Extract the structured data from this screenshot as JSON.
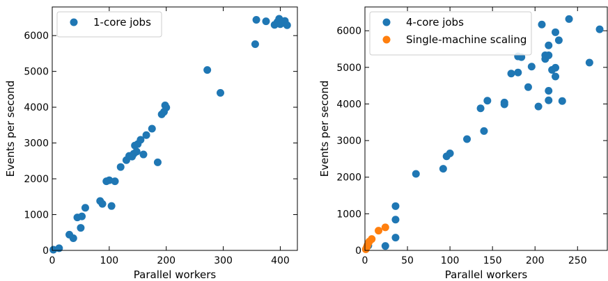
{
  "chart_data": [
    {
      "type": "scatter",
      "xlabel": "Parallel workers",
      "ylabel": "Events per second",
      "xlim": [
        0,
        430
      ],
      "ylim": [
        0,
        6800
      ],
      "xticks": [
        0,
        100,
        200,
        300,
        400
      ],
      "yticks": [
        0,
        1000,
        2000,
        3000,
        4000,
        5000,
        6000
      ],
      "legend_position": "top-left",
      "series": [
        {
          "name": "1-core jobs",
          "color": "#1f77b4",
          "points": [
            [
              2,
              20
            ],
            [
              12,
              60
            ],
            [
              30,
              440
            ],
            [
              37,
              340
            ],
            [
              44,
              920
            ],
            [
              50,
              630
            ],
            [
              52,
              950
            ],
            [
              58,
              1190
            ],
            [
              84,
              1380
            ],
            [
              88,
              1300
            ],
            [
              95,
              1930
            ],
            [
              100,
              1960
            ],
            [
              104,
              1240
            ],
            [
              110,
              1930
            ],
            [
              120,
              2330
            ],
            [
              130,
              2520
            ],
            [
              135,
              2640
            ],
            [
              140,
              2620
            ],
            [
              143,
              2700
            ],
            [
              145,
              2930
            ],
            [
              148,
              2760
            ],
            [
              150,
              2970
            ],
            [
              155,
              3090
            ],
            [
              160,
              2680
            ],
            [
              165,
              3220
            ],
            [
              175,
              3400
            ],
            [
              185,
              2460
            ],
            [
              192,
              3800
            ],
            [
              196,
              3870
            ],
            [
              198,
              4050
            ],
            [
              200,
              3990
            ],
            [
              272,
              5040
            ],
            [
              295,
              4400
            ],
            [
              356,
              5760
            ],
            [
              358,
              6440
            ],
            [
              375,
              6400
            ],
            [
              390,
              6300
            ],
            [
              395,
              6380
            ],
            [
              398,
              6470
            ],
            [
              400,
              6320
            ],
            [
              403,
              6350
            ],
            [
              408,
              6410
            ],
            [
              412,
              6290
            ]
          ]
        }
      ]
    },
    {
      "type": "scatter",
      "xlabel": "Parallel workers",
      "ylabel": "Events per second",
      "xlim": [
        0,
        285
      ],
      "ylim": [
        0,
        6650
      ],
      "xticks": [
        0,
        50,
        100,
        150,
        200,
        250
      ],
      "yticks": [
        0,
        1000,
        2000,
        3000,
        4000,
        5000,
        6000
      ],
      "legend_position": "top-left",
      "series": [
        {
          "name": "4-core jobs",
          "color": "#1f77b4",
          "points": [
            [
              4,
              130
            ],
            [
              24,
              120
            ],
            [
              36,
              1210
            ],
            [
              36,
              840
            ],
            [
              36,
              350
            ],
            [
              60,
              2090
            ],
            [
              92,
              2230
            ],
            [
              96,
              2570
            ],
            [
              100,
              2650
            ],
            [
              120,
              3040
            ],
            [
              136,
              3880
            ],
            [
              140,
              3260
            ],
            [
              144,
              4090
            ],
            [
              164,
              4040
            ],
            [
              164,
              3990
            ],
            [
              172,
              4830
            ],
            [
              180,
              4860
            ],
            [
              180,
              5300
            ],
            [
              184,
              5280
            ],
            [
              192,
              4460
            ],
            [
              196,
              5020
            ],
            [
              204,
              3930
            ],
            [
              208,
              6170
            ],
            [
              212,
              5330
            ],
            [
              212,
              5230
            ],
            [
              216,
              5600
            ],
            [
              216,
              5330
            ],
            [
              216,
              4360
            ],
            [
              216,
              4100
            ],
            [
              220,
              4930
            ],
            [
              224,
              5960
            ],
            [
              224,
              4990
            ],
            [
              224,
              4750
            ],
            [
              228,
              5740
            ],
            [
              232,
              4080
            ],
            [
              240,
              6320
            ],
            [
              264,
              5130
            ],
            [
              276,
              6040
            ]
          ]
        },
        {
          "name": "Single-machine scaling",
          "color": "#ff7f0e",
          "points": [
            [
              1,
              30
            ],
            [
              2,
              80
            ],
            [
              3,
              140
            ],
            [
              4,
              200
            ],
            [
              5,
              240
            ],
            [
              8,
              310
            ],
            [
              16,
              540
            ],
            [
              24,
              630
            ]
          ]
        }
      ]
    }
  ]
}
